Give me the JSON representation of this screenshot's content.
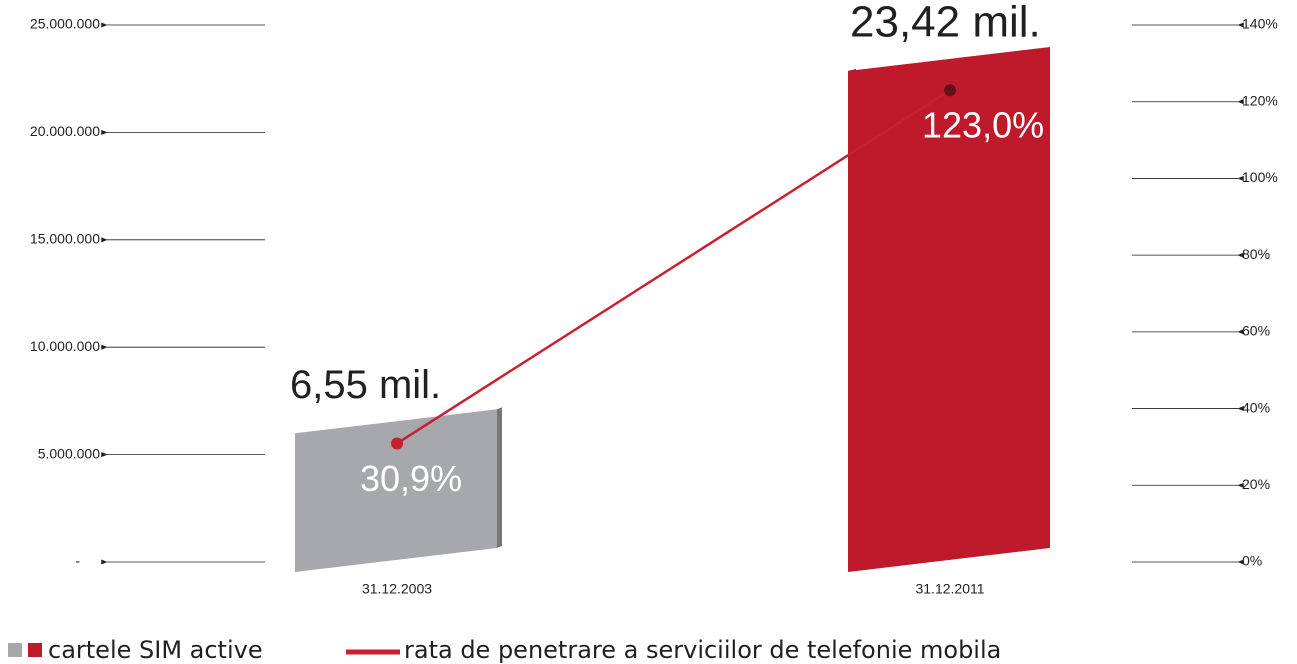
{
  "chart_data": {
    "type": "bar",
    "categories": [
      "31.12.2003",
      "31.12.2011"
    ],
    "series": [
      {
        "name": "cartele SIM active",
        "colors": [
          "#a7a8ab",
          "#be1a2b"
        ],
        "values": [
          6550000,
          23420000
        ],
        "value_labels": [
          "6,55 mil.",
          "23,42 mil."
        ]
      },
      {
        "name": "rata de penetrare a serviciilor de telefonie mobila",
        "type": "line",
        "axis": "y2",
        "color": "#c8202f",
        "values": [
          30.9,
          123.0
        ],
        "value_labels": [
          "30,9%",
          "123,0%"
        ]
      }
    ],
    "ylim": [
      0,
      25000000
    ],
    "yticks": [
      {
        "value": 0,
        "label": "-"
      },
      {
        "value": 5000000,
        "label": "5.000.000"
      },
      {
        "value": 10000000,
        "label": "10.000.000"
      },
      {
        "value": 15000000,
        "label": "15.000.000"
      },
      {
        "value": 20000000,
        "label": "20.000.000"
      },
      {
        "value": 25000000,
        "label": "25.000.000"
      }
    ],
    "y2lim": [
      0,
      140
    ],
    "y2ticks": [
      {
        "value": 0,
        "label": "0%"
      },
      {
        "value": 20,
        "label": "20%"
      },
      {
        "value": 40,
        "label": "40%"
      },
      {
        "value": 60,
        "label": "60%"
      },
      {
        "value": 80,
        "label": "80%"
      },
      {
        "value": 100,
        "label": "100%"
      },
      {
        "value": 120,
        "label": "120%"
      },
      {
        "value": 140,
        "label": "140%"
      }
    ]
  }
}
